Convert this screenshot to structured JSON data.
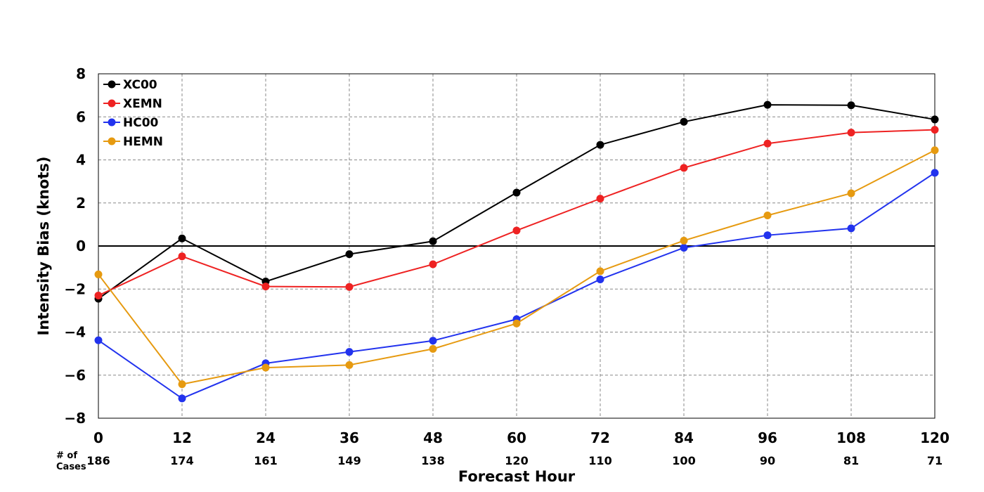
{
  "chart_data": {
    "type": "line",
    "title": "",
    "xlabel": "Forecast Hour",
    "ylabel": "Intensity Bias (knots)",
    "x": [
      0,
      12,
      24,
      36,
      48,
      60,
      72,
      84,
      96,
      108,
      120
    ],
    "xlim": [
      0,
      120
    ],
    "ylim": [
      -8,
      8
    ],
    "x_ticks": [
      "0",
      "12",
      "24",
      "36",
      "48",
      "60",
      "72",
      "84",
      "96",
      "108",
      "120"
    ],
    "y_ticks": [
      "8",
      "6",
      "4",
      "2",
      "0",
      "−2",
      "−4",
      "−6",
      "−8"
    ],
    "y_tick_values": [
      8,
      6,
      4,
      2,
      0,
      -2,
      -4,
      -6,
      -8
    ],
    "grid": true,
    "zero_line": true,
    "legend_position": "top-left",
    "cases_label_line1": "# of",
    "cases_label_line2": "Cases",
    "cases": [
      "186",
      "174",
      "161",
      "149",
      "138",
      "120",
      "110",
      "100",
      "90",
      "81",
      "71"
    ],
    "series": [
      {
        "name": "XC00",
        "color": "#000000",
        "values": [
          -2.45,
          0.35,
          -1.65,
          -0.38,
          0.22,
          2.48,
          4.7,
          5.77,
          6.56,
          6.54,
          5.88
        ]
      },
      {
        "name": "XEMN",
        "color": "#ee2222",
        "values": [
          -2.3,
          -0.48,
          -1.88,
          -1.9,
          -0.85,
          0.72,
          2.2,
          3.63,
          4.76,
          5.27,
          5.4
        ]
      },
      {
        "name": "HC00",
        "color": "#2233ee",
        "values": [
          -4.38,
          -7.08,
          -5.45,
          -4.92,
          -4.4,
          -3.4,
          -1.55,
          -0.08,
          0.5,
          0.82,
          3.4
        ]
      },
      {
        "name": "HEMN",
        "color": "#e69a10",
        "values": [
          -1.32,
          -6.42,
          -5.65,
          -5.53,
          -4.78,
          -3.6,
          -1.17,
          0.25,
          1.42,
          2.45,
          4.45
        ]
      }
    ]
  }
}
